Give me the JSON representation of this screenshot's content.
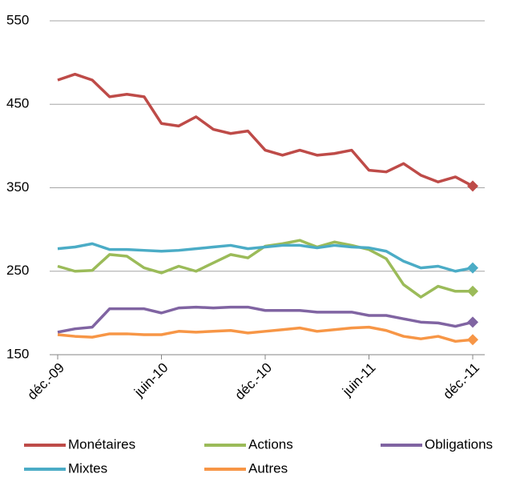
{
  "chart_data": {
    "type": "line",
    "categories": [
      "déc.-09",
      null,
      null,
      null,
      null,
      null,
      "juin-10",
      null,
      null,
      null,
      null,
      null,
      "déc.-10",
      null,
      null,
      null,
      null,
      null,
      "juin-11",
      null,
      null,
      null,
      null,
      null,
      "déc.-11"
    ],
    "series": [
      {
        "name": "Monétaires",
        "color": "#be4b48",
        "values": [
          479,
          486,
          479,
          459,
          462,
          459,
          427,
          424,
          435,
          420,
          415,
          418,
          395,
          389,
          395,
          389,
          391,
          395,
          371,
          369,
          379,
          365,
          357,
          363,
          352
        ]
      },
      {
        "name": "Actions",
        "color": "#9bbb59",
        "values": [
          256,
          250,
          251,
          270,
          268,
          254,
          248,
          256,
          250,
          260,
          270,
          266,
          280,
          283,
          287,
          279,
          285,
          281,
          276,
          265,
          234,
          219,
          232,
          226,
          226
        ]
      },
      {
        "name": "Obligations",
        "color": "#8064a2",
        "values": [
          177,
          181,
          183,
          205,
          205,
          205,
          200,
          206,
          207,
          206,
          207,
          207,
          203,
          203,
          203,
          201,
          201,
          201,
          197,
          197,
          193,
          189,
          188,
          184,
          189
        ]
      },
      {
        "name": "Mixtes",
        "color": "#4bacc6",
        "values": [
          277,
          279,
          283,
          276,
          276,
          275,
          274,
          275,
          277,
          279,
          281,
          277,
          279,
          281,
          281,
          278,
          281,
          279,
          278,
          274,
          262,
          254,
          256,
          250,
          254
        ]
      },
      {
        "name": "Autres",
        "color": "#f79646",
        "values": [
          174,
          172,
          171,
          175,
          175,
          174,
          174,
          178,
          177,
          178,
          179,
          176,
          178,
          180,
          182,
          178,
          180,
          182,
          183,
          179,
          172,
          169,
          172,
          166,
          168
        ]
      }
    ],
    "ylim": [
      150,
      550
    ],
    "yticks": [
      150,
      250,
      350,
      450,
      550
    ],
    "grid": true,
    "legend": "bottom"
  }
}
